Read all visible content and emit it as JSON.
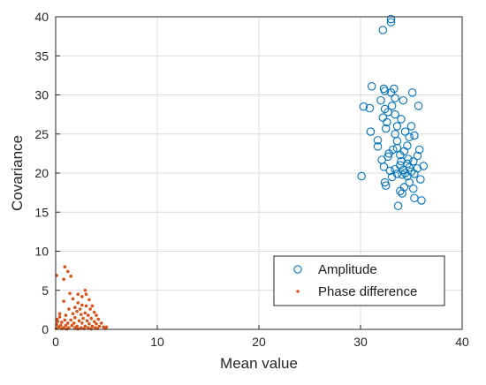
{
  "chart_data": {
    "type": "scatter",
    "xlabel": "Mean value",
    "ylabel": "Covariance",
    "xlim": [
      0,
      40
    ],
    "ylim": [
      0,
      40
    ],
    "xticks": [
      0,
      10,
      20,
      30,
      40
    ],
    "yticks": [
      0,
      5,
      10,
      15,
      20,
      25,
      30,
      35,
      40
    ],
    "grid": true,
    "legend_position": "bottom-right",
    "series": [
      {
        "name": "Amplitude",
        "marker": "open-circle",
        "color": "#0072BD",
        "points": [
          [
            33.0,
            39.7
          ],
          [
            33.0,
            39.3
          ],
          [
            32.2,
            38.3
          ],
          [
            31.1,
            31.1
          ],
          [
            32.3,
            30.8
          ],
          [
            33.3,
            30.8
          ],
          [
            32.4,
            30.5
          ],
          [
            33.0,
            30.3
          ],
          [
            35.1,
            30.3
          ],
          [
            33.4,
            29.6
          ],
          [
            32.0,
            29.3
          ],
          [
            34.2,
            29.3
          ],
          [
            33.1,
            28.6
          ],
          [
            35.7,
            28.6
          ],
          [
            30.3,
            28.5
          ],
          [
            30.9,
            28.3
          ],
          [
            32.4,
            28.2
          ],
          [
            32.7,
            27.8
          ],
          [
            33.4,
            27.5
          ],
          [
            32.2,
            27.1
          ],
          [
            34.0,
            26.9
          ],
          [
            32.6,
            26.5
          ],
          [
            33.6,
            26.0
          ],
          [
            35.0,
            26.0
          ],
          [
            32.5,
            25.7
          ],
          [
            34.4,
            25.3
          ],
          [
            31.0,
            25.3
          ],
          [
            33.4,
            25.0
          ],
          [
            35.3,
            24.8
          ],
          [
            34.8,
            24.6
          ],
          [
            31.7,
            24.2
          ],
          [
            33.6,
            24.1
          ],
          [
            34.6,
            23.5
          ],
          [
            31.7,
            23.4
          ],
          [
            33.6,
            23.2
          ],
          [
            33.2,
            23.0
          ],
          [
            35.8,
            23.0
          ],
          [
            34.3,
            22.8
          ],
          [
            32.8,
            22.5
          ],
          [
            33.9,
            22.3
          ],
          [
            35.6,
            22.2
          ],
          [
            32.7,
            22.1
          ],
          [
            34.7,
            21.8
          ],
          [
            32.1,
            21.7
          ],
          [
            35.2,
            21.5
          ],
          [
            34.0,
            21.5
          ],
          [
            34.6,
            21.2
          ],
          [
            33.9,
            21.0
          ],
          [
            36.2,
            20.9
          ],
          [
            32.3,
            20.8
          ],
          [
            34.8,
            20.7
          ],
          [
            35.6,
            20.6
          ],
          [
            33.4,
            20.5
          ],
          [
            34.2,
            20.4
          ],
          [
            32.9,
            20.3
          ],
          [
            35.0,
            20.2
          ],
          [
            34.4,
            20.0
          ],
          [
            33.6,
            19.9
          ],
          [
            35.3,
            19.9
          ],
          [
            34.1,
            19.8
          ],
          [
            30.1,
            19.6
          ],
          [
            34.6,
            19.6
          ],
          [
            33.1,
            19.5
          ],
          [
            35.9,
            19.2
          ],
          [
            34.8,
            18.8
          ],
          [
            32.4,
            18.8
          ],
          [
            32.5,
            18.4
          ],
          [
            34.3,
            18.2
          ],
          [
            35.2,
            18.0
          ],
          [
            33.9,
            17.7
          ],
          [
            34.1,
            17.4
          ],
          [
            35.3,
            16.8
          ],
          [
            36.0,
            16.5
          ],
          [
            33.7,
            15.8
          ]
        ]
      },
      {
        "name": "Phase difference",
        "marker": "filled-dot",
        "color": "#D95319",
        "points": [
          [
            0.9,
            8.0
          ],
          [
            1.2,
            7.4
          ],
          [
            1.5,
            6.8
          ],
          [
            0.1,
            6.9
          ],
          [
            0.8,
            6.4
          ],
          [
            2.9,
            5.0
          ],
          [
            2.2,
            4.5
          ],
          [
            1.4,
            4.6
          ],
          [
            3.0,
            4.5
          ],
          [
            1.7,
            3.9
          ],
          [
            2.6,
            4.2
          ],
          [
            3.3,
            3.8
          ],
          [
            0.8,
            3.6
          ],
          [
            2.2,
            3.4
          ],
          [
            2.6,
            3.1
          ],
          [
            3.0,
            3.0
          ],
          [
            3.6,
            3.0
          ],
          [
            1.9,
            2.8
          ],
          [
            2.4,
            2.6
          ],
          [
            3.4,
            2.6
          ],
          [
            2.1,
            2.3
          ],
          [
            2.9,
            2.1
          ],
          [
            3.8,
            2.2
          ],
          [
            1.7,
            2.0
          ],
          [
            2.5,
            1.9
          ],
          [
            3.2,
            1.8
          ],
          [
            4.0,
            1.8
          ],
          [
            0.4,
            1.6
          ],
          [
            1.9,
            1.5
          ],
          [
            2.7,
            1.4
          ],
          [
            3.5,
            1.4
          ],
          [
            4.2,
            1.3
          ],
          [
            0.9,
            1.2
          ],
          [
            1.5,
            1.2
          ],
          [
            2.3,
            1.1
          ],
          [
            3.1,
            1.1
          ],
          [
            3.8,
            1.0
          ],
          [
            0.2,
            1.0
          ],
          [
            0.6,
            0.9
          ],
          [
            1.2,
            0.8
          ],
          [
            1.8,
            0.8
          ],
          [
            2.6,
            0.8
          ],
          [
            3.3,
            0.7
          ],
          [
            4.0,
            0.7
          ],
          [
            4.5,
            0.8
          ],
          [
            0.1,
            0.6
          ],
          [
            0.5,
            0.5
          ],
          [
            1.0,
            0.5
          ],
          [
            1.6,
            0.5
          ],
          [
            2.1,
            0.4
          ],
          [
            2.9,
            0.4
          ],
          [
            3.6,
            0.4
          ],
          [
            4.3,
            0.4
          ],
          [
            0.3,
            0.3
          ],
          [
            0.8,
            0.2
          ],
          [
            1.3,
            0.2
          ],
          [
            1.9,
            0.2
          ],
          [
            2.5,
            0.2
          ],
          [
            3.2,
            0.2
          ],
          [
            3.9,
            0.2
          ],
          [
            4.7,
            0.3
          ],
          [
            0.05,
            0.1
          ],
          [
            0.6,
            0.1
          ],
          [
            1.1,
            0.05
          ],
          [
            2.2,
            0.05
          ],
          [
            2.8,
            0.1
          ],
          [
            3.5,
            0.05
          ],
          [
            4.1,
            0.1
          ],
          [
            4.9,
            0.1
          ],
          [
            5.0,
            0.3
          ],
          [
            0.15,
            1.3
          ],
          [
            0.4,
            2.0
          ],
          [
            1.0,
            1.8
          ],
          [
            1.3,
            2.6
          ]
        ]
      }
    ]
  }
}
